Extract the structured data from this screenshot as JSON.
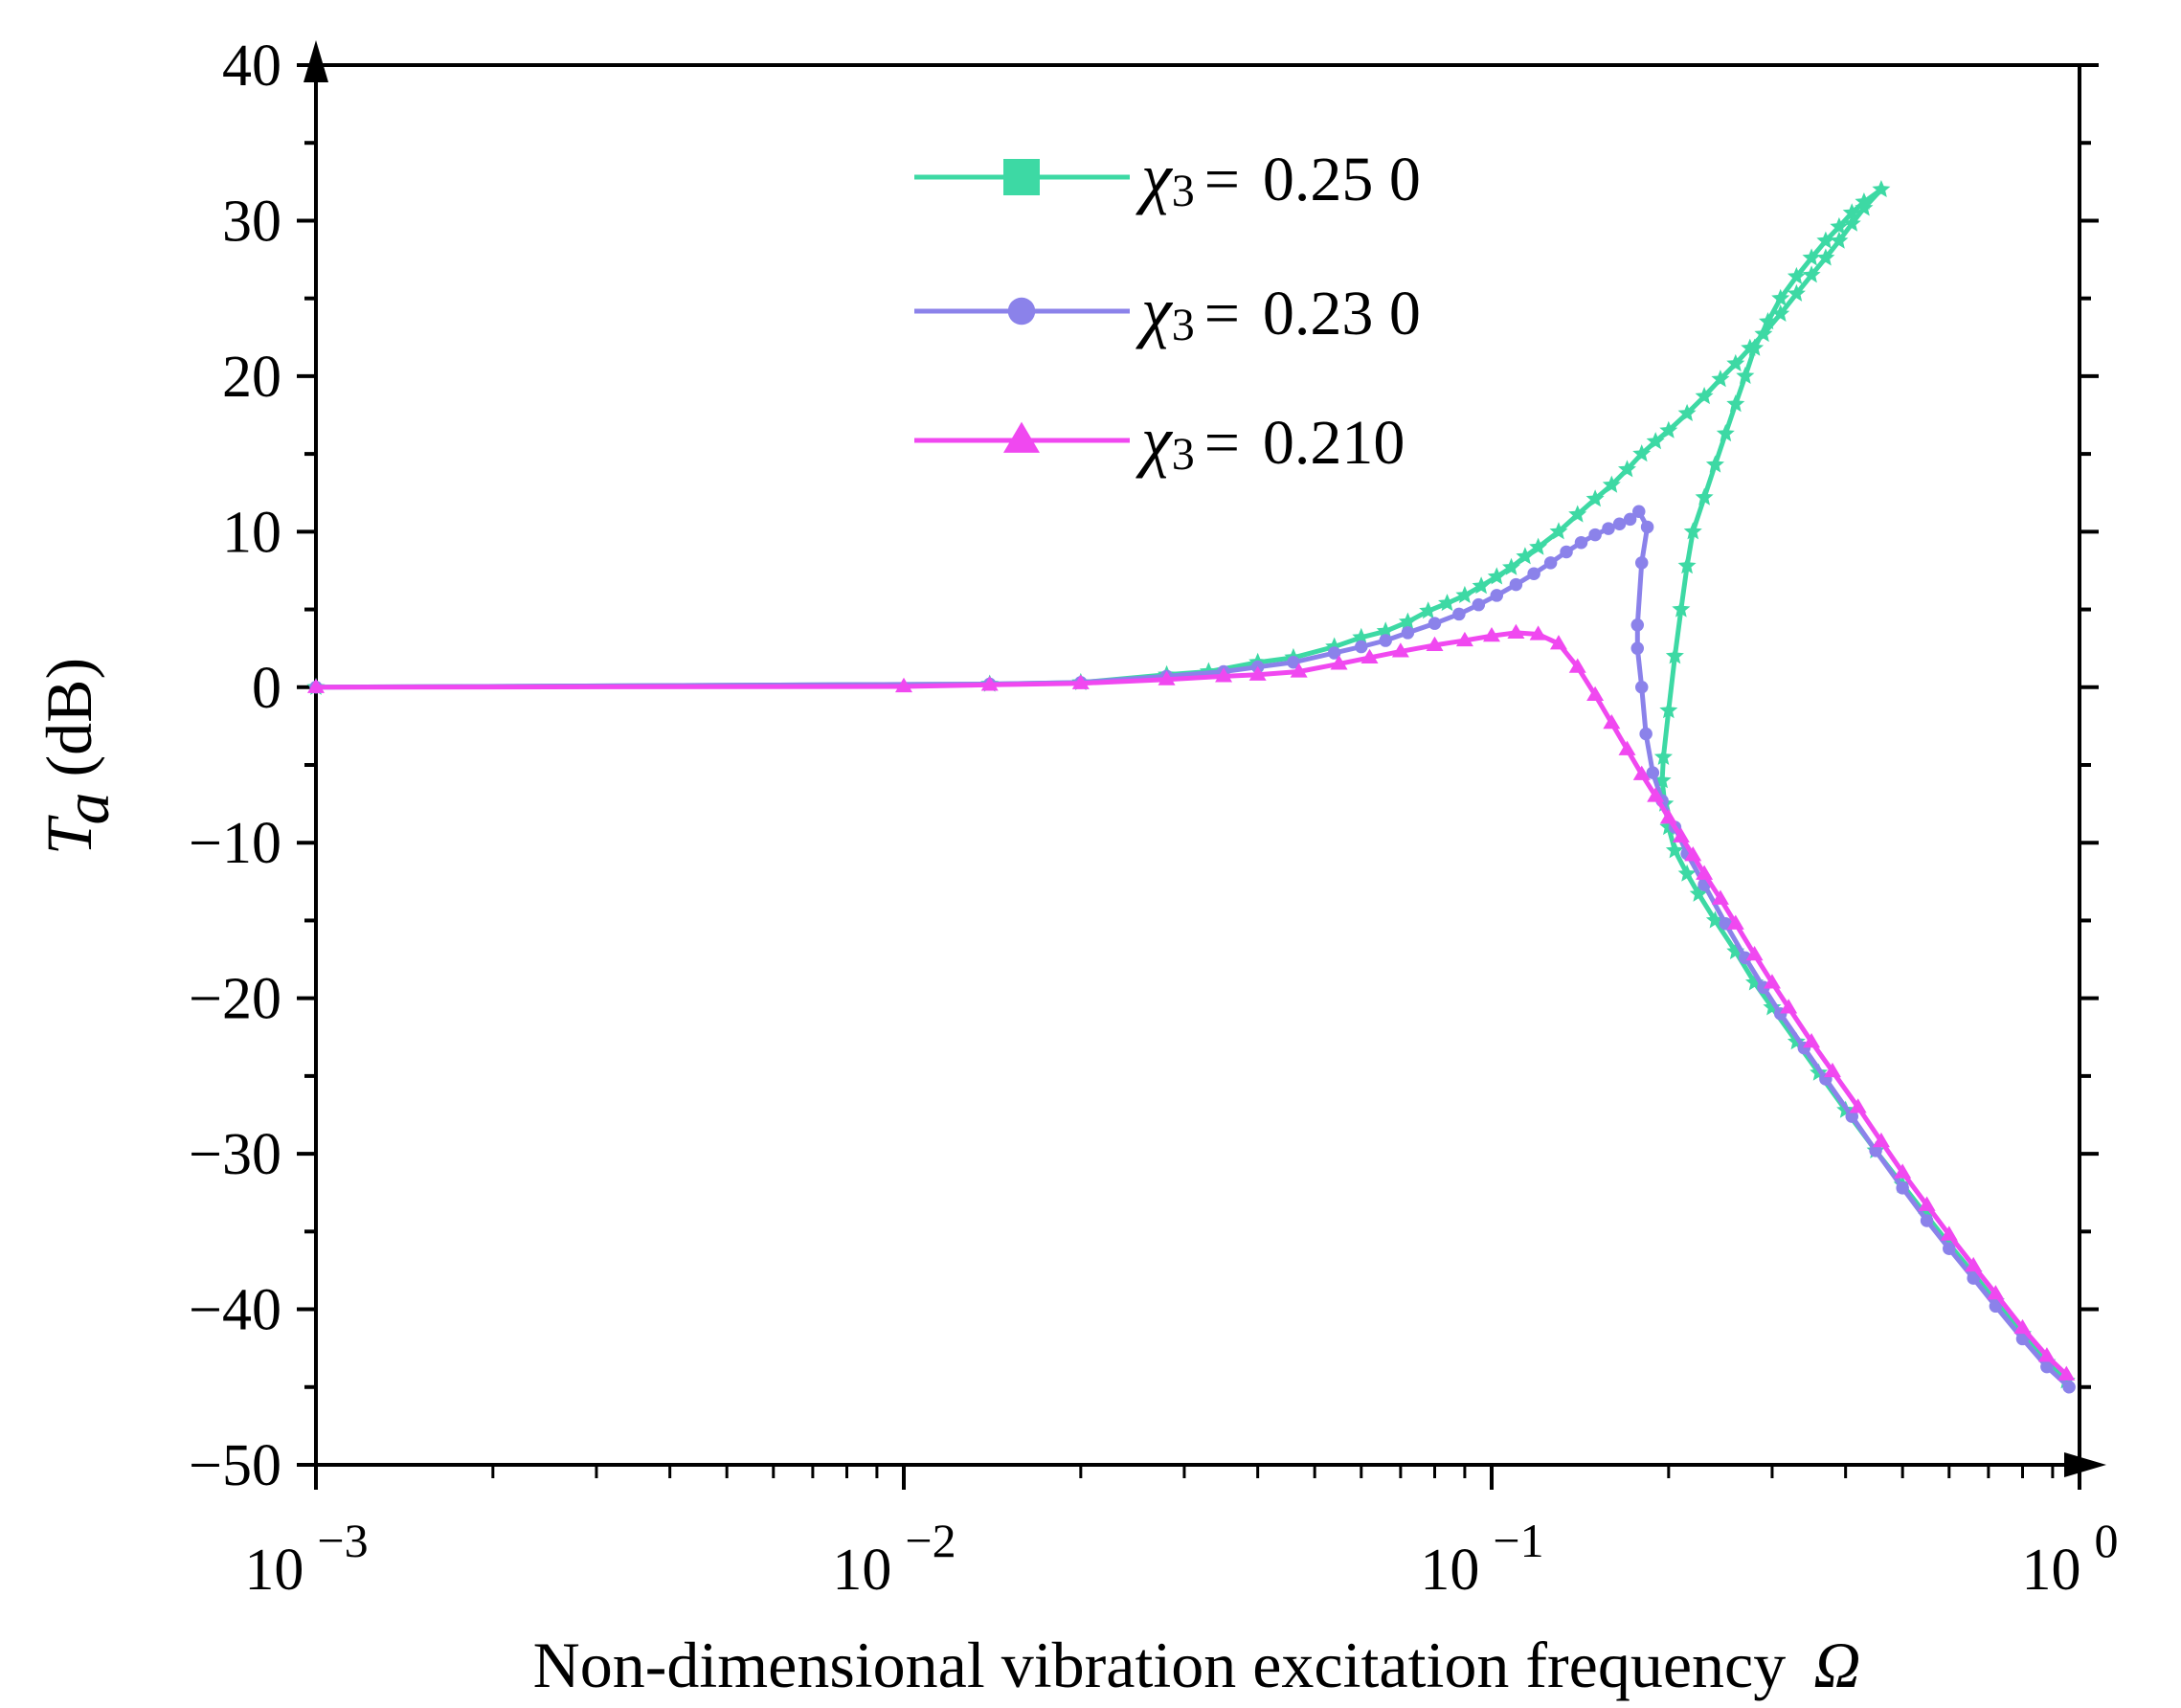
{
  "chart_data": {
    "type": "line",
    "xlabel": "Non-dimensional vibration excitation frequency",
    "xlabel_symbol": "Ω",
    "ylabel_symbol": "T",
    "ylabel_subscript": "a",
    "ylabel_unit": "(dB)",
    "x_scale": "log",
    "xlim": [
      0.001,
      1
    ],
    "ylim": [
      -50,
      40
    ],
    "x_ticks": [
      {
        "value": 0.001,
        "base": "10",
        "exp": "−3"
      },
      {
        "value": 0.01,
        "base": "10",
        "exp": "−2"
      },
      {
        "value": 0.1,
        "base": "10",
        "exp": "−1"
      },
      {
        "value": 1,
        "base": "10",
        "exp": "0"
      }
    ],
    "y_ticks": [
      {
        "value": 40,
        "label": "40"
      },
      {
        "value": 30,
        "label": "30"
      },
      {
        "value": 20,
        "label": "20"
      },
      {
        "value": 10,
        "label": "10"
      },
      {
        "value": 0,
        "label": "0"
      },
      {
        "value": -10,
        "label": "−10"
      },
      {
        "value": -20,
        "label": "−20"
      },
      {
        "value": -30,
        "label": "−30"
      },
      {
        "value": -40,
        "label": "−40"
      },
      {
        "value": -50,
        "label": "−50"
      }
    ],
    "grid": false,
    "legend_position": "top-center",
    "series": [
      {
        "name": "0.25 0",
        "legend_symbol": "χ",
        "legend_subscript": "3",
        "legend_eq": "=",
        "color": "#3dd9a4",
        "marker": "star",
        "points": [
          [
            0.001,
            0
          ],
          [
            0.014,
            0.2
          ],
          [
            0.02,
            0.3
          ],
          [
            0.028,
            0.8
          ],
          [
            0.033,
            1.0
          ],
          [
            0.04,
            1.6
          ],
          [
            0.046,
            1.9
          ],
          [
            0.054,
            2.6
          ],
          [
            0.06,
            3.2
          ],
          [
            0.066,
            3.6
          ],
          [
            0.072,
            4.2
          ],
          [
            0.078,
            4.9
          ],
          [
            0.084,
            5.4
          ],
          [
            0.09,
            5.9
          ],
          [
            0.096,
            6.5
          ],
          [
            0.102,
            7.1
          ],
          [
            0.108,
            7.7
          ],
          [
            0.114,
            8.4
          ],
          [
            0.12,
            9.0
          ],
          [
            0.13,
            10.0
          ],
          [
            0.14,
            11.1
          ],
          [
            0.15,
            12.1
          ],
          [
            0.16,
            13.0
          ],
          [
            0.17,
            14.0
          ],
          [
            0.18,
            15.0
          ],
          [
            0.19,
            15.8
          ],
          [
            0.2,
            16.5
          ],
          [
            0.215,
            17.6
          ],
          [
            0.23,
            18.7
          ],
          [
            0.245,
            19.8
          ],
          [
            0.26,
            20.8
          ],
          [
            0.275,
            21.8
          ],
          [
            0.29,
            22.7
          ],
          [
            0.31,
            24.0
          ],
          [
            0.33,
            25.3
          ],
          [
            0.35,
            26.5
          ],
          [
            0.37,
            27.6
          ],
          [
            0.39,
            28.7
          ],
          [
            0.41,
            29.8
          ],
          [
            0.43,
            30.8
          ],
          [
            0.46,
            32.0
          ],
          [
            0.43,
            31.2
          ],
          [
            0.41,
            30.5
          ],
          [
            0.39,
            29.6
          ],
          [
            0.37,
            28.7
          ],
          [
            0.35,
            27.6
          ],
          [
            0.33,
            26.4
          ],
          [
            0.31,
            25.0
          ],
          [
            0.295,
            23.5
          ],
          [
            0.28,
            21.8
          ],
          [
            0.27,
            20.0
          ],
          [
            0.26,
            18.2
          ],
          [
            0.25,
            16.3
          ],
          [
            0.24,
            14.3
          ],
          [
            0.23,
            12.2
          ],
          [
            0.22,
            10.0
          ],
          [
            0.215,
            7.8
          ],
          [
            0.21,
            5.0
          ],
          [
            0.205,
            2.0
          ],
          [
            0.2,
            -1.5
          ],
          [
            0.196,
            -4.5
          ],
          [
            0.195,
            -6.0
          ],
          [
            0.197,
            -7.5
          ],
          [
            0.2,
            -9.0
          ],
          [
            0.205,
            -10.5
          ],
          [
            0.215,
            -12.0
          ],
          [
            0.225,
            -13.3
          ],
          [
            0.24,
            -15.0
          ],
          [
            0.26,
            -17.0
          ],
          [
            0.28,
            -19.0
          ],
          [
            0.3,
            -20.6
          ],
          [
            0.33,
            -22.8
          ],
          [
            0.36,
            -24.8
          ],
          [
            0.4,
            -27.2
          ],
          [
            0.45,
            -29.8
          ],
          [
            0.5,
            -32.0
          ],
          [
            0.55,
            -34.0
          ],
          [
            0.6,
            -35.8
          ],
          [
            0.66,
            -37.7
          ],
          [
            0.72,
            -39.5
          ],
          [
            0.8,
            -41.6
          ],
          [
            0.88,
            -43.4
          ],
          [
            0.95,
            -44.6
          ]
        ]
      },
      {
        "name": "0.23 0",
        "legend_symbol": "χ",
        "legend_subscript": "3",
        "legend_eq": "=",
        "color": "#8b82ea",
        "marker": "circle",
        "points": [
          [
            0.001,
            0
          ],
          [
            0.014,
            0.2
          ],
          [
            0.02,
            0.3
          ],
          [
            0.028,
            0.7
          ],
          [
            0.035,
            1.0
          ],
          [
            0.04,
            1.3
          ],
          [
            0.046,
            1.6
          ],
          [
            0.054,
            2.2
          ],
          [
            0.06,
            2.6
          ],
          [
            0.066,
            3.0
          ],
          [
            0.072,
            3.5
          ],
          [
            0.08,
            4.1
          ],
          [
            0.088,
            4.7
          ],
          [
            0.095,
            5.3
          ],
          [
            0.102,
            5.9
          ],
          [
            0.11,
            6.6
          ],
          [
            0.118,
            7.3
          ],
          [
            0.126,
            8.0
          ],
          [
            0.134,
            8.7
          ],
          [
            0.142,
            9.3
          ],
          [
            0.15,
            9.8
          ],
          [
            0.158,
            10.2
          ],
          [
            0.165,
            10.5
          ],
          [
            0.172,
            10.8
          ],
          [
            0.178,
            11.3
          ],
          [
            0.184,
            10.3
          ],
          [
            0.18,
            8.0
          ],
          [
            0.177,
            4.0
          ],
          [
            0.177,
            2.5
          ],
          [
            0.18,
            0.0
          ],
          [
            0.183,
            -3.0
          ],
          [
            0.188,
            -5.5
          ],
          [
            0.195,
            -7.3
          ],
          [
            0.205,
            -9.0
          ],
          [
            0.215,
            -10.7
          ],
          [
            0.23,
            -12.7
          ],
          [
            0.25,
            -15.2
          ],
          [
            0.27,
            -17.4
          ],
          [
            0.29,
            -19.3
          ],
          [
            0.31,
            -21.0
          ],
          [
            0.34,
            -23.2
          ],
          [
            0.37,
            -25.2
          ],
          [
            0.41,
            -27.6
          ],
          [
            0.45,
            -29.8
          ],
          [
            0.5,
            -32.2
          ],
          [
            0.55,
            -34.3
          ],
          [
            0.6,
            -36.1
          ],
          [
            0.66,
            -38.0
          ],
          [
            0.72,
            -39.8
          ],
          [
            0.8,
            -41.9
          ],
          [
            0.88,
            -43.7
          ],
          [
            0.96,
            -45.0
          ]
        ]
      },
      {
        "name": "0.210",
        "legend_symbol": "χ",
        "legend_subscript": "3",
        "legend_eq": "=",
        "color": "#f048f0",
        "marker": "triangle",
        "points": [
          [
            0.001,
            0
          ],
          [
            0.01,
            0.05
          ],
          [
            0.014,
            0.15
          ],
          [
            0.02,
            0.25
          ],
          [
            0.028,
            0.5
          ],
          [
            0.035,
            0.7
          ],
          [
            0.04,
            0.8
          ],
          [
            0.047,
            1.0
          ],
          [
            0.055,
            1.5
          ],
          [
            0.062,
            1.9
          ],
          [
            0.07,
            2.3
          ],
          [
            0.08,
            2.7
          ],
          [
            0.09,
            3.0
          ],
          [
            0.1,
            3.3
          ],
          [
            0.11,
            3.5
          ],
          [
            0.12,
            3.4
          ],
          [
            0.13,
            2.8
          ],
          [
            0.14,
            1.3
          ],
          [
            0.15,
            -0.5
          ],
          [
            0.16,
            -2.3
          ],
          [
            0.17,
            -4.0
          ],
          [
            0.18,
            -5.6
          ],
          [
            0.19,
            -7.0
          ],
          [
            0.2,
            -8.4
          ],
          [
            0.21,
            -9.6
          ],
          [
            0.22,
            -10.8
          ],
          [
            0.23,
            -12.0
          ],
          [
            0.245,
            -13.6
          ],
          [
            0.26,
            -15.2
          ],
          [
            0.28,
            -17.2
          ],
          [
            0.3,
            -19.0
          ],
          [
            0.32,
            -20.6
          ],
          [
            0.35,
            -22.8
          ],
          [
            0.38,
            -24.7
          ],
          [
            0.42,
            -27.0
          ],
          [
            0.46,
            -29.2
          ],
          [
            0.5,
            -31.2
          ],
          [
            0.55,
            -33.3
          ],
          [
            0.6,
            -35.2
          ],
          [
            0.66,
            -37.2
          ],
          [
            0.72,
            -39.0
          ],
          [
            0.8,
            -41.2
          ],
          [
            0.88,
            -43.0
          ],
          [
            0.95,
            -44.2
          ]
        ]
      }
    ]
  }
}
